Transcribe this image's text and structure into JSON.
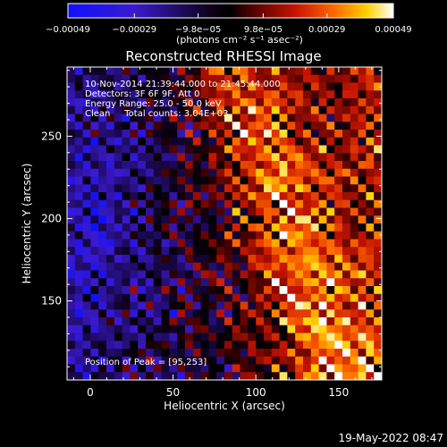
{
  "colorbar": {
    "tick_labels": [
      "−0.00049",
      "−0.00029",
      "−9.8e−05",
      "9.8e−05",
      "0.00029",
      "0.00049"
    ],
    "tick_values": [
      -0.00049,
      -0.00029,
      -9.8e-05,
      9.8e-05,
      0.00029,
      0.00049
    ],
    "range": [
      -0.00049,
      0.00049
    ],
    "unit_label": "(photons cm⁻² s⁻¹ asec⁻²)"
  },
  "chart_data": {
    "type": "heatmap",
    "title": "Reconstructed RHESSI Image",
    "xlabel": "Heliocentric X (arcsec)",
    "ylabel": "Heliocentric Y (arcsec)",
    "xlim": [
      -14,
      176
    ],
    "ylim": [
      102,
      292
    ],
    "x_ticks": [
      0,
      50,
      100,
      150
    ],
    "y_ticks": [
      150,
      200,
      250
    ],
    "x_tick_labels": [
      "0",
      "50",
      "100",
      "150"
    ],
    "y_tick_labels": [
      "150",
      "200",
      "250"
    ],
    "colormap": "blue-black-red-yellow-white",
    "peak": [
      95,
      253
    ],
    "annotations": [
      "10-Nov-2014 21:39:44.000 to 21:45:44.000",
      "Detectors: 3F 6F 9F, Att 0",
      "Energy Range: 25.0 - 50.0 keV",
      "Clean     Total counts: 3.04E+03"
    ],
    "peak_label": "Position of Peak = [95,253]"
  },
  "footer": {
    "timestamp": "19-May-2022 08:47"
  }
}
